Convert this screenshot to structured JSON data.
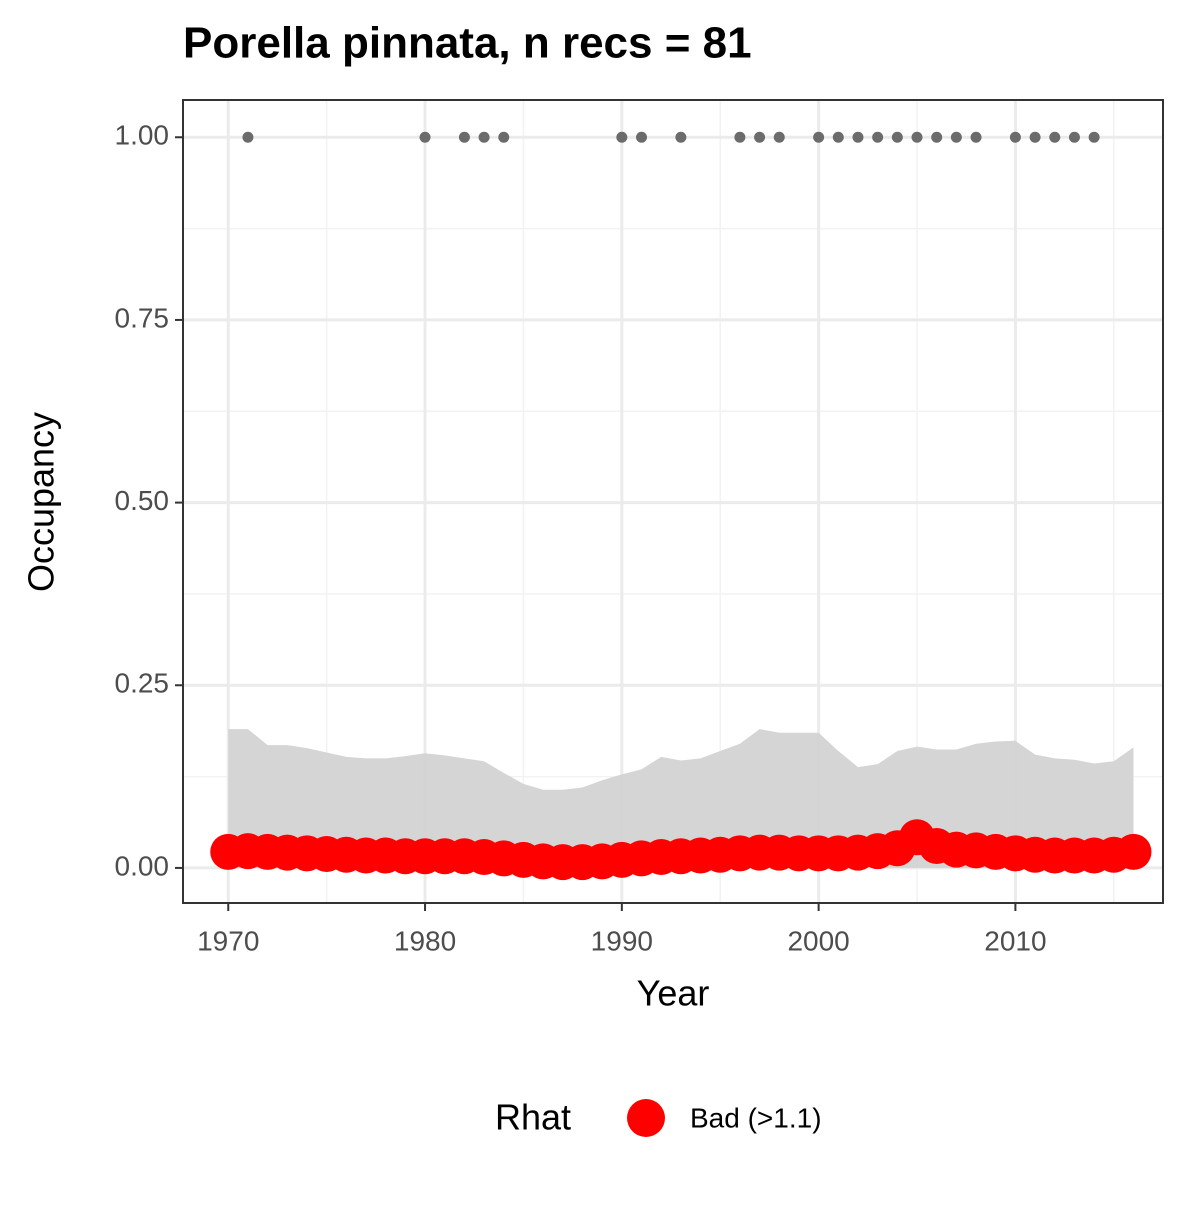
{
  "chart_data": {
    "type": "occupancy",
    "title": "Porella pinnata, n recs = 81",
    "x_label": "Year",
    "y_label": "Occupancy",
    "legend_title": "Rhat",
    "xlim": [
      1967.7,
      2017.5
    ],
    "ylim": [
      -0.048,
      1.051
    ],
    "xticks": [
      1970,
      1980,
      1990,
      2000,
      2010
    ],
    "yticks": [
      {
        "value": 0,
        "label": "0.00"
      },
      {
        "value": 0.25,
        "label": "0.25"
      },
      {
        "value": 0.5,
        "label": "0.50"
      },
      {
        "value": 0.75,
        "label": "0.75"
      },
      {
        "value": 1,
        "label": "1.00"
      }
    ],
    "minor_xticks": [
      1975,
      1985,
      1995,
      2005,
      2015
    ],
    "minor_yticks": [
      0.125,
      0.375,
      0.625,
      0.875
    ],
    "grid": true,
    "x": [
      1970,
      1971,
      1972,
      1973,
      1974,
      1975,
      1976,
      1977,
      1978,
      1979,
      1980,
      1981,
      1982,
      1983,
      1984,
      1985,
      1986,
      1987,
      1988,
      1989,
      1990,
      1991,
      1992,
      1993,
      1994,
      1995,
      1996,
      1997,
      1998,
      1999,
      2000,
      2001,
      2002,
      2003,
      2004,
      2005,
      2006,
      2007,
      2008,
      2009,
      2010,
      2011,
      2012,
      2013,
      2014,
      2015,
      2016
    ],
    "band": {
      "color": "#d3d3d3",
      "upper": [
        0.19,
        0.19,
        0.168,
        0.168,
        0.164,
        0.158,
        0.152,
        0.15,
        0.15,
        0.153,
        0.157,
        0.154,
        0.15,
        0.146,
        0.13,
        0.115,
        0.107,
        0.107,
        0.11,
        0.12,
        0.128,
        0.135,
        0.152,
        0.147,
        0.15,
        0.16,
        0.17,
        0.19,
        0.185,
        0.185,
        0.185,
        0.16,
        0.138,
        0.142,
        0.16,
        0.166,
        0.162,
        0.162,
        0.17,
        0.173,
        0.174,
        0.155,
        0.15,
        0.148,
        0.143,
        0.146,
        0.165
      ],
      "lower": [
        0,
        0,
        0,
        0,
        0,
        0,
        0,
        0,
        0,
        0,
        0,
        0,
        0,
        0,
        0,
        0,
        0,
        0,
        0,
        0,
        0,
        0,
        0,
        0,
        0,
        0,
        0,
        0,
        0,
        0,
        0,
        0,
        0,
        0,
        0,
        0,
        0,
        0,
        0,
        0,
        0,
        0,
        0,
        0,
        0,
        0,
        0
      ]
    },
    "series": [
      {
        "name": "Bad (>1.1)",
        "color": "#ff0000",
        "values": [
          0.022,
          0.023,
          0.022,
          0.021,
          0.02,
          0.019,
          0.018,
          0.017,
          0.017,
          0.016,
          0.016,
          0.016,
          0.016,
          0.015,
          0.013,
          0.011,
          0.009,
          0.008,
          0.008,
          0.009,
          0.011,
          0.013,
          0.015,
          0.016,
          0.017,
          0.018,
          0.02,
          0.021,
          0.021,
          0.02,
          0.02,
          0.02,
          0.021,
          0.023,
          0.027,
          0.042,
          0.03,
          0.025,
          0.024,
          0.022,
          0.02,
          0.018,
          0.017,
          0.017,
          0.017,
          0.018,
          0.022
        ]
      }
    ],
    "records": {
      "color": "#6b6b6b",
      "x": [
        1971,
        1980,
        1982,
        1983,
        1984,
        1990,
        1991,
        1993,
        1996,
        1997,
        1998,
        2000,
        2001,
        2002,
        2003,
        2004,
        2005,
        2006,
        2007,
        2008,
        2010,
        2011,
        2012,
        2013,
        2014
      ],
      "values": [
        1,
        1,
        1,
        1,
        1,
        1,
        1,
        1,
        1,
        1,
        1,
        1,
        1,
        1,
        1,
        1,
        1,
        1,
        1,
        1,
        1,
        1,
        1,
        1,
        1
      ]
    }
  }
}
